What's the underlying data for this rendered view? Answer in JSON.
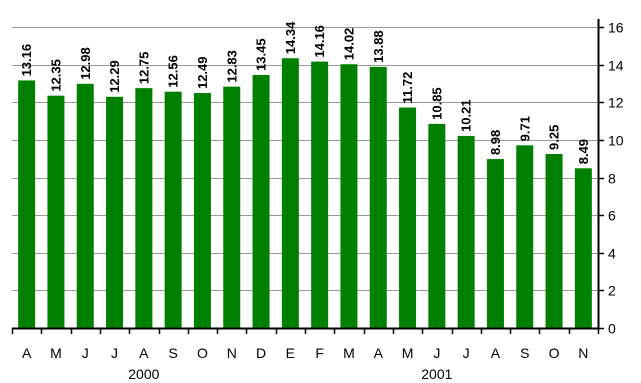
{
  "chart_data": {
    "type": "bar",
    "title": "",
    "xlabel": "",
    "ylabel": "",
    "ylim": [
      0,
      16
    ],
    "yticks": [
      0,
      2,
      4,
      6,
      8,
      10,
      12,
      14,
      16
    ],
    "grid": true,
    "y_axis_side": "right",
    "bar_color": "#008000",
    "categories": [
      "A",
      "M",
      "J",
      "J",
      "A",
      "S",
      "O",
      "N",
      "D",
      "E",
      "F",
      "M",
      "A",
      "M",
      "J",
      "J",
      "A",
      "S",
      "O",
      "N"
    ],
    "values": [
      13.16,
      12.35,
      12.98,
      12.29,
      12.75,
      12.56,
      12.49,
      12.83,
      13.45,
      14.34,
      14.16,
      14.02,
      13.88,
      11.72,
      10.85,
      10.21,
      8.98,
      9.71,
      9.25,
      8.49
    ],
    "data_labels": [
      "13.16",
      "12.35",
      "12.98",
      "12.29",
      "12.75",
      "12.56",
      "12.49",
      "12.83",
      "13.45",
      "14.34",
      "14.16",
      "14.02",
      "13.88",
      "11.72",
      "10.85",
      "10.21",
      "8.98",
      "9.71",
      "9.25",
      "8.49"
    ],
    "year_groups": [
      {
        "label": "2000",
        "start": 0,
        "end": 8
      },
      {
        "label": "2001",
        "start": 9,
        "end": 19
      }
    ]
  }
}
